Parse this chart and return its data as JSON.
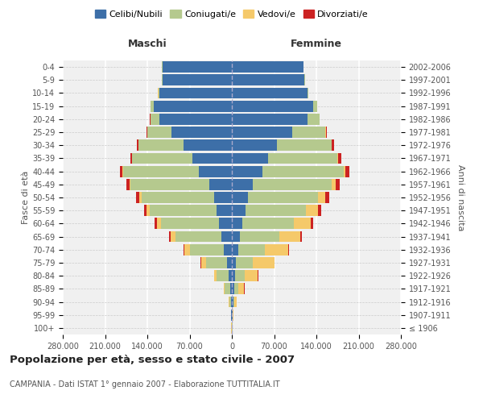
{
  "age_groups": [
    "100+",
    "95-99",
    "90-94",
    "85-89",
    "80-84",
    "75-79",
    "70-74",
    "65-69",
    "60-64",
    "55-59",
    "50-54",
    "45-49",
    "40-44",
    "35-39",
    "30-34",
    "25-29",
    "20-24",
    "15-19",
    "10-14",
    "5-9",
    "0-4"
  ],
  "birth_years": [
    "≤ 1906",
    "1907-1911",
    "1912-1916",
    "1917-1921",
    "1922-1926",
    "1927-1931",
    "1932-1936",
    "1937-1941",
    "1942-1946",
    "1947-1951",
    "1952-1956",
    "1957-1961",
    "1962-1966",
    "1967-1971",
    "1972-1976",
    "1977-1981",
    "1982-1986",
    "1987-1991",
    "1992-1996",
    "1997-2001",
    "2002-2006"
  ],
  "males": {
    "celibi": [
      400,
      700,
      1500,
      3000,
      5000,
      8000,
      14000,
      18000,
      22000,
      26000,
      30000,
      38000,
      55000,
      65000,
      80000,
      100000,
      120000,
      130000,
      120000,
      115000,
      115000
    ],
    "coniugati": [
      200,
      800,
      3000,
      9000,
      20000,
      35000,
      55000,
      75000,
      95000,
      110000,
      120000,
      130000,
      125000,
      100000,
      75000,
      40000,
      15000,
      5000,
      2000,
      1000,
      500
    ],
    "vedovi": [
      100,
      200,
      500,
      1500,
      4000,
      8000,
      10000,
      9000,
      7000,
      5000,
      3000,
      2000,
      1000,
      500,
      300,
      200,
      100,
      50,
      20,
      10,
      5
    ],
    "divorziati": [
      20,
      50,
      100,
      200,
      300,
      600,
      1200,
      2500,
      4000,
      5000,
      5500,
      5000,
      4000,
      3000,
      2500,
      1000,
      300,
      100,
      50,
      20,
      10
    ]
  },
  "females": {
    "nubili": [
      600,
      1000,
      2000,
      3500,
      5000,
      7000,
      10000,
      13000,
      17000,
      22000,
      27000,
      35000,
      50000,
      60000,
      75000,
      100000,
      125000,
      135000,
      125000,
      120000,
      118000
    ],
    "coniugate": [
      200,
      800,
      2500,
      7000,
      16000,
      28000,
      45000,
      65000,
      85000,
      100000,
      115000,
      130000,
      135000,
      115000,
      90000,
      55000,
      20000,
      6000,
      2000,
      1000,
      500
    ],
    "vedove": [
      300,
      800,
      3000,
      10000,
      22000,
      35000,
      38000,
      35000,
      28000,
      20000,
      12000,
      7000,
      3000,
      1500,
      800,
      400,
      200,
      100,
      40,
      20,
      10
    ],
    "divorziate": [
      20,
      50,
      100,
      200,
      400,
      700,
      1500,
      2500,
      4500,
      6000,
      7000,
      7000,
      6000,
      5000,
      3500,
      1500,
      500,
      150,
      50,
      20,
      10
    ]
  },
  "colors": {
    "celibi": "#3d6fa8",
    "coniugati": "#b5c98e",
    "vedovi": "#f5c96a",
    "divorziati": "#cc2222"
  },
  "xlim": 280000,
  "title": "Popolazione per età, sesso e stato civile - 2007",
  "subtitle": "CAMPANIA - Dati ISTAT 1° gennaio 2007 - Elaborazione TUTTITALIA.IT",
  "legend_labels": [
    "Celibi/Nubili",
    "Coniugati/e",
    "Vedovi/e",
    "Divorziati/e"
  ],
  "xlabel_left": "Maschi",
  "xlabel_right": "Femmine",
  "ylabel_left": "Fasce di età",
  "ylabel_right": "Anni di nascita",
  "background_color": "#f0f0f0"
}
